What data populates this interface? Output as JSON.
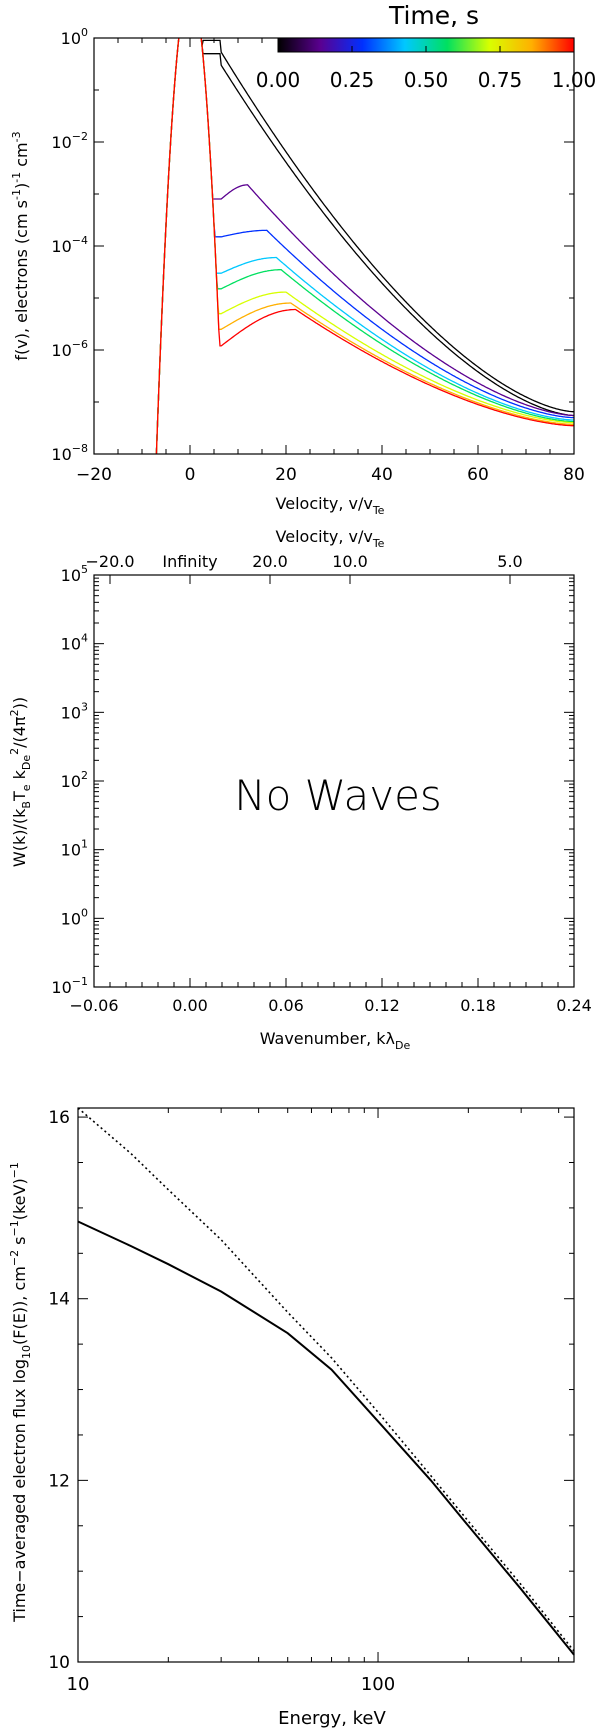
{
  "chart_data": [
    {
      "type": "line",
      "xlabel": "Velocity, v/v",
      "xlabel_sub": "Te",
      "ylabel": "f(v), electrons (cm s",
      "ylabel_sup1": "-1",
      "ylabel_mid": ")",
      "ylabel_sup2": "-1",
      "ylabel_end": " cm",
      "ylabel_sup3": "-3",
      "xlim": [
        -20,
        80
      ],
      "ylim": [
        1e-08,
        1
      ],
      "yscale": "log",
      "x_ticks": [
        -20,
        0,
        20,
        40,
        60,
        80
      ],
      "x_tick_labels": [
        "−20",
        "0",
        "20",
        "40",
        "60",
        "80"
      ],
      "y_tick_exponents": [
        -8,
        -6,
        -4,
        -2,
        0
      ],
      "y_tick_base": "10",
      "colorbar": {
        "title": "Time, s",
        "range": [
          0,
          1
        ],
        "tick_labels": [
          "0.00",
          "0.25",
          "0.50",
          "0.75",
          "1.00"
        ],
        "colormap": [
          "#000000",
          "#5a0090",
          "#0030ff",
          "#00c8ff",
          "#00e060",
          "#d8ff00",
          "#ffb000",
          "#ff0000"
        ]
      },
      "maxwellian": {
        "peak": 10,
        "v_at_1e8": -7
      },
      "series": [
        {
          "time": 0.0,
          "color": "#000000",
          "dip_value": 0.5,
          "bump_v": 5,
          "bump_value": 0.5,
          "v80_value": 5.5e-08
        },
        {
          "time": 0.03,
          "color": "#000000",
          "dip_value": 0.9,
          "bump_v": 5,
          "bump_value": 0.9,
          "v80_value": 6.5e-08
        },
        {
          "time": 0.15,
          "color": "#5a0090",
          "dip_value": 0.0008,
          "bump_v": 12,
          "bump_value": 0.0015,
          "v80_value": 5.5e-08
        },
        {
          "time": 0.3,
          "color": "#0030ff",
          "dip_value": 0.00015,
          "bump_v": 16,
          "bump_value": 0.0002,
          "v80_value": 5e-08
        },
        {
          "time": 0.45,
          "color": "#00c8ff",
          "dip_value": 3e-05,
          "bump_v": 18,
          "bump_value": 6e-05,
          "v80_value": 4.5e-08
        },
        {
          "time": 0.6,
          "color": "#00e060",
          "dip_value": 1.5e-05,
          "bump_v": 19,
          "bump_value": 3.5e-05,
          "v80_value": 4.2e-08
        },
        {
          "time": 0.75,
          "color": "#d8ff00",
          "dip_value": 5e-06,
          "bump_v": 20,
          "bump_value": 1.3e-05,
          "v80_value": 4e-08
        },
        {
          "time": 0.9,
          "color": "#ffb000",
          "dip_value": 2.5e-06,
          "bump_v": 21,
          "bump_value": 8e-06,
          "v80_value": 3.7e-08
        },
        {
          "time": 1.0,
          "color": "#ff0000",
          "dip_value": 1.2e-06,
          "bump_v": 22,
          "bump_value": 6e-06,
          "v80_value": 3.5e-08
        }
      ]
    },
    {
      "type": "line",
      "xlabel": "Wavenumber, kλ",
      "xlabel_sub": "De",
      "top_axis_label": "Velocity, v/v",
      "top_axis_label_sub": "Te",
      "top_tick_labels": [
        {
          "label": "−20.0",
          "k": -0.05
        },
        {
          "label": "Infinity",
          "k": 0.0
        },
        {
          "label": "20.0",
          "k": 0.05
        },
        {
          "label": "10.0",
          "k": 0.1
        },
        {
          "label": "5.0",
          "k": 0.2
        }
      ],
      "ylabel": "W(k)/(k",
      "ylabel_parts": [
        "W(k)/(k",
        "B",
        "T",
        "e",
        " k",
        "De",
        "2",
        "/(4π",
        "2",
        "))"
      ],
      "xlim": [
        -0.06,
        0.24
      ],
      "ylim": [
        0.1,
        100000
      ],
      "yscale": "log",
      "x_ticks": [
        -0.06,
        0.0,
        0.06,
        0.12,
        0.18,
        0.24
      ],
      "x_tick_labels": [
        "−0.06",
        "0.00",
        "0.06",
        "0.12",
        "0.18",
        "0.24"
      ],
      "y_tick_exponents": [
        -1,
        0,
        1,
        2,
        3,
        4,
        5
      ],
      "y_tick_base": "10",
      "annotation": "No Waves"
    },
    {
      "type": "line",
      "xlabel": "Energy, keV",
      "ylabel": "Time−averaged electron flux log",
      "ylabel_parts": [
        "Time−averaged electron flux log",
        "10",
        "(F(E)), cm",
        "−2",
        " s",
        "−1",
        "(keV)",
        "−1"
      ],
      "xscale": "log",
      "xlim": [
        10,
        450
      ],
      "ylim": [
        10,
        16.1
      ],
      "x_ticks": [
        10,
        100
      ],
      "x_tick_labels": [
        "10",
        "100"
      ],
      "y_ticks": [
        10,
        12,
        14,
        16
      ],
      "y_tick_labels": [
        "10",
        "12",
        "14",
        "16"
      ],
      "series": [
        {
          "style": "solid",
          "x": [
            10,
            15,
            20,
            30,
            50,
            70,
            100,
            150,
            200,
            300,
            450
          ],
          "y": [
            14.85,
            14.58,
            14.38,
            14.08,
            13.62,
            13.22,
            12.65,
            12.0,
            11.5,
            10.8,
            10.08
          ]
        },
        {
          "style": "dotted",
          "x": [
            10,
            15,
            20,
            30,
            50,
            70,
            100,
            150,
            200,
            300,
            450
          ],
          "y": [
            16.1,
            15.6,
            15.2,
            14.65,
            13.85,
            13.35,
            12.75,
            12.05,
            11.55,
            10.85,
            10.12
          ]
        }
      ]
    }
  ]
}
